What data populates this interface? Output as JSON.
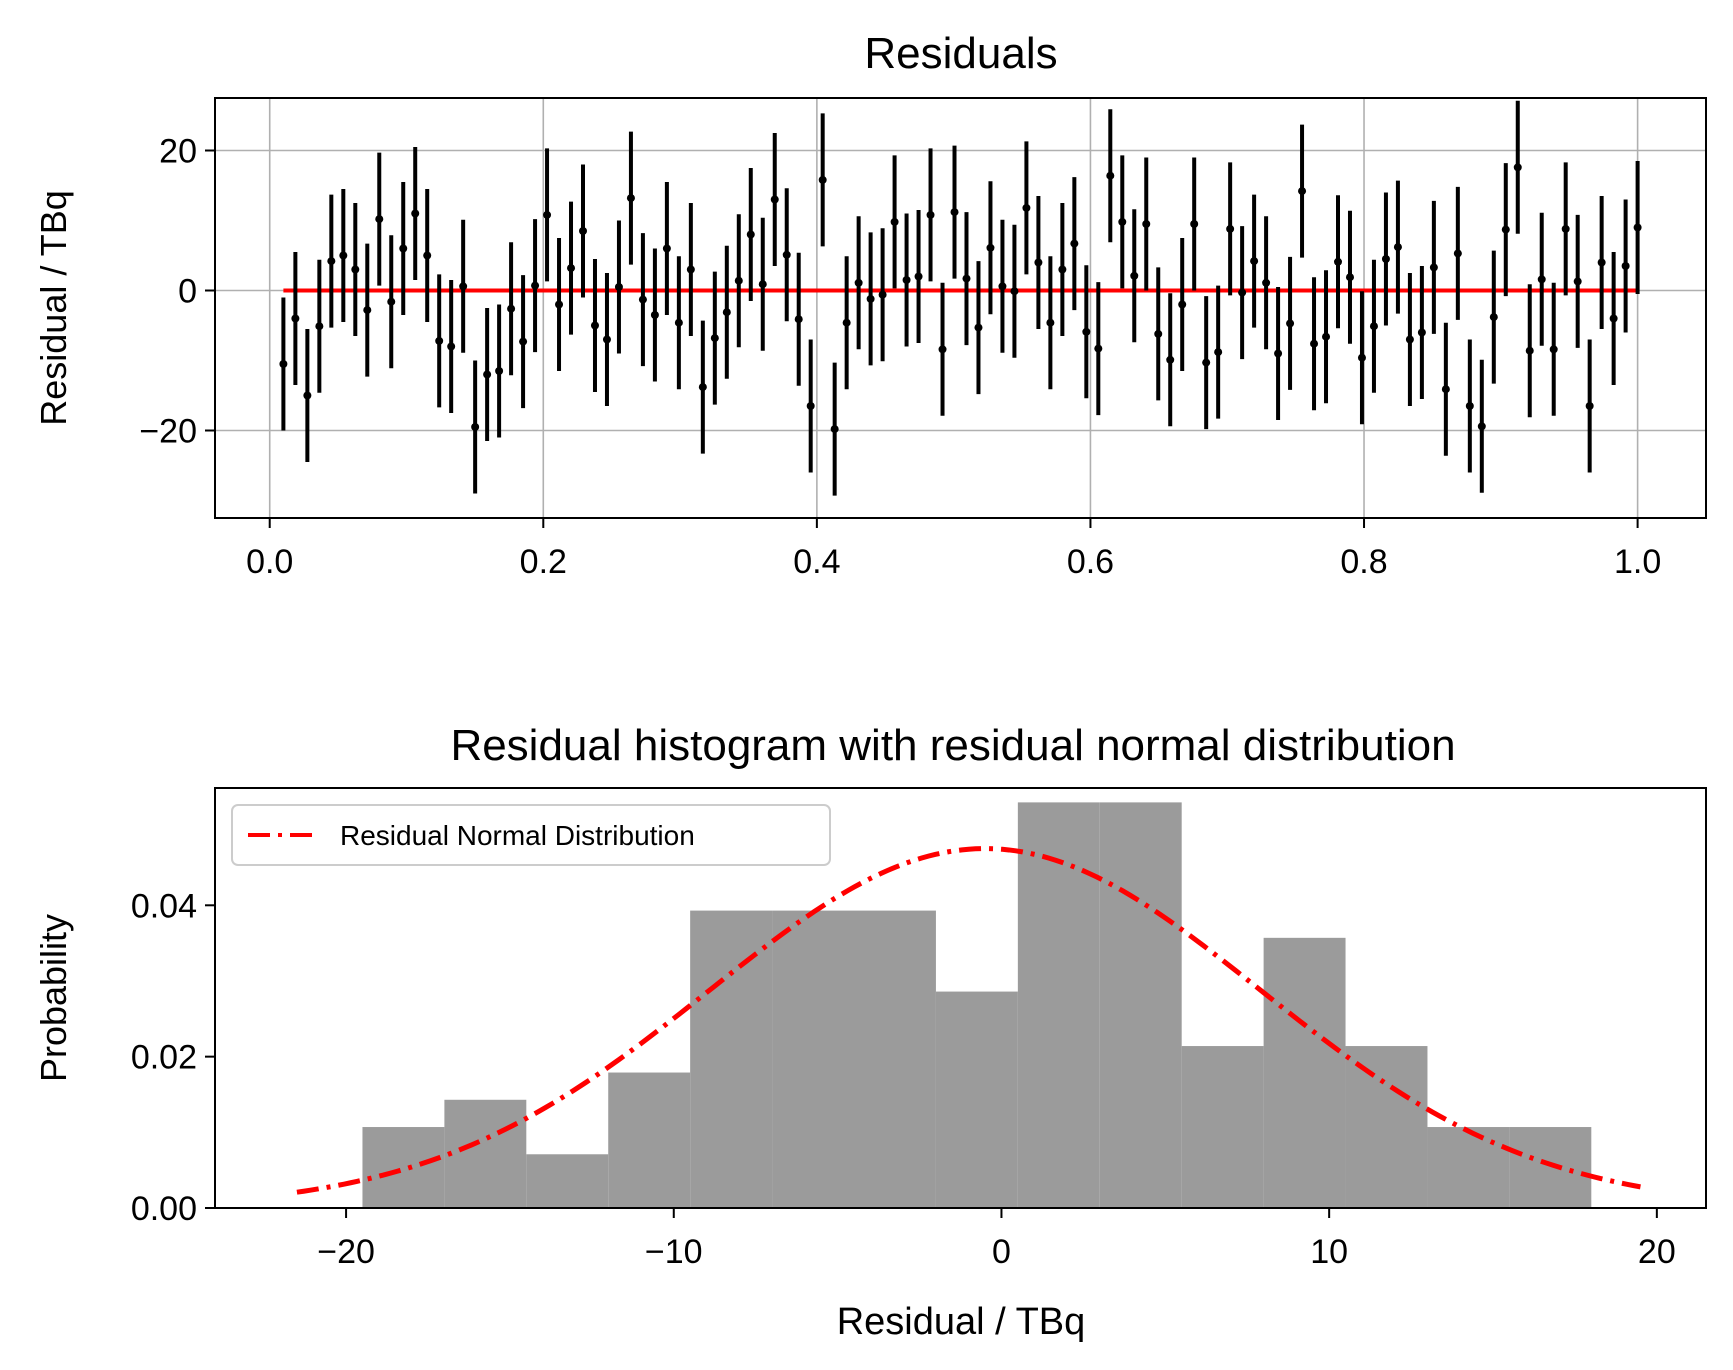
{
  "chart_data": [
    {
      "type": "scatter",
      "title": "Residuals",
      "xlabel": "",
      "ylabel": "Residual / TBq",
      "xlim": [
        -0.04,
        1.05
      ],
      "ylim": [
        -32.5,
        27.5
      ],
      "grid": true,
      "xticks": [
        0.0,
        0.2,
        0.4,
        0.6,
        0.8,
        1.0
      ],
      "xtick_labels": [
        "0.0",
        "0.2",
        "0.4",
        "0.6",
        "0.8",
        "1.0"
      ],
      "yticks": [
        -20,
        0,
        20
      ],
      "ytick_labels": [
        "−20",
        "0",
        "20"
      ],
      "point_color": "#000000",
      "errorbar": 9.5,
      "zero_line": {
        "y": 0,
        "x": [
          0.01,
          1.0
        ],
        "color": "#ff0000"
      },
      "y": [
        -10.5,
        -4.0,
        -15.0,
        -5.1,
        4.2,
        5.0,
        3.0,
        -2.8,
        10.2,
        -1.6,
        6.0,
        11.0,
        5.0,
        -7.2,
        -8.0,
        0.6,
        -19.5,
        -12.0,
        -11.5,
        -2.6,
        -7.3,
        0.7,
        10.8,
        -2.0,
        3.2,
        8.5,
        -5.0,
        -7.0,
        0.5,
        13.2,
        -1.3,
        -3.5,
        6.0,
        -4.6,
        3.0,
        -13.8,
        -6.8,
        -3.1,
        1.4,
        8.0,
        0.9,
        13.0,
        5.1,
        -4.1,
        -16.5,
        15.8,
        -19.8,
        -4.6,
        1.1,
        -1.2,
        -0.6,
        9.8,
        1.5,
        2.0,
        10.8,
        -8.4,
        11.2,
        1.7,
        -5.3,
        6.1,
        0.6,
        -0.1,
        11.8,
        4.0,
        -4.6,
        3.0,
        6.7,
        -5.9,
        -8.3,
        16.4,
        9.8,
        2.1,
        9.5,
        -6.2,
        -9.9,
        -2.0,
        9.5,
        -10.3,
        -8.8,
        8.8,
        -0.3,
        4.2,
        1.1,
        -9.0,
        -4.7,
        14.2,
        -7.6,
        -6.6,
        4.1,
        1.9,
        -9.6,
        -5.1,
        4.5,
        6.2,
        -7.0,
        -6.0,
        3.3,
        -14.1,
        5.3,
        -16.5,
        -19.4,
        -3.8,
        8.7,
        17.6,
        -8.6,
        1.6,
        -8.4,
        8.8,
        1.3,
        -16.5,
        4.0,
        -4.0,
        3.5,
        9.0
      ]
    },
    {
      "type": "bar",
      "title": "Residual histogram with residual normal distribution",
      "xlabel": "Residual / TBq",
      "ylabel": "Probability",
      "xlim": [
        -24,
        21.5
      ],
      "ylim": [
        0,
        0.0555
      ],
      "grid": false,
      "xticks": [
        -20,
        -10,
        0,
        10,
        20
      ],
      "xtick_labels": [
        "−20",
        "−10",
        "0",
        "10",
        "20"
      ],
      "yticks": [
        0,
        0.02,
        0.04
      ],
      "ytick_labels": [
        "0.00",
        "0.02",
        "0.04"
      ],
      "bin_edges": [
        -19.5,
        -17.0,
        -14.5,
        -12.0,
        -9.5,
        -7.0,
        -4.5,
        -2.0,
        0.5,
        3.0,
        5.5,
        8.0,
        10.5,
        13.0,
        15.5,
        18.0
      ],
      "values": [
        0.0107,
        0.0143,
        0.0071,
        0.0179,
        0.0393,
        0.0393,
        0.0393,
        0.0286,
        0.0536,
        0.0536,
        0.0214,
        0.0357,
        0.0214,
        0.0107,
        0.0107
      ],
      "bar_color": "#9b9b9b",
      "legend_position": "upper-left",
      "series": [
        {
          "name": "Residual Normal Distribution",
          "kind": "normal-pdf",
          "mean": -0.5,
          "std": 8.4,
          "x_range": [
            -21.5,
            19.5
          ],
          "color": "#ff0000",
          "style": "dash-dot"
        }
      ]
    }
  ]
}
